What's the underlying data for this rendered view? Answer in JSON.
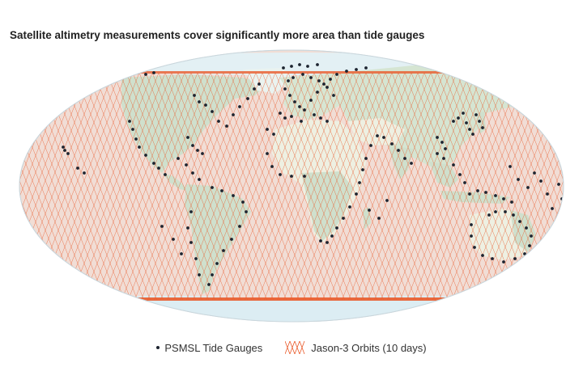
{
  "title": "Satellite altimetry measurements cover significantly more area than tide gauges",
  "legend": {
    "gauges_label": "PSMSL Tide Gauges",
    "orbits_label": "Jason-3 Orbits (10 days)"
  },
  "colors": {
    "ocean": "#f1ddd5",
    "orbit": "#ea5a2a",
    "land": "#cfe0cd",
    "land_desert": "#f2f1e6",
    "ice": "#d8ecf2",
    "gauge": "#1d2430"
  },
  "icons": [
    "tide-gauge-dot-icon",
    "orbit-track-icon"
  ]
}
